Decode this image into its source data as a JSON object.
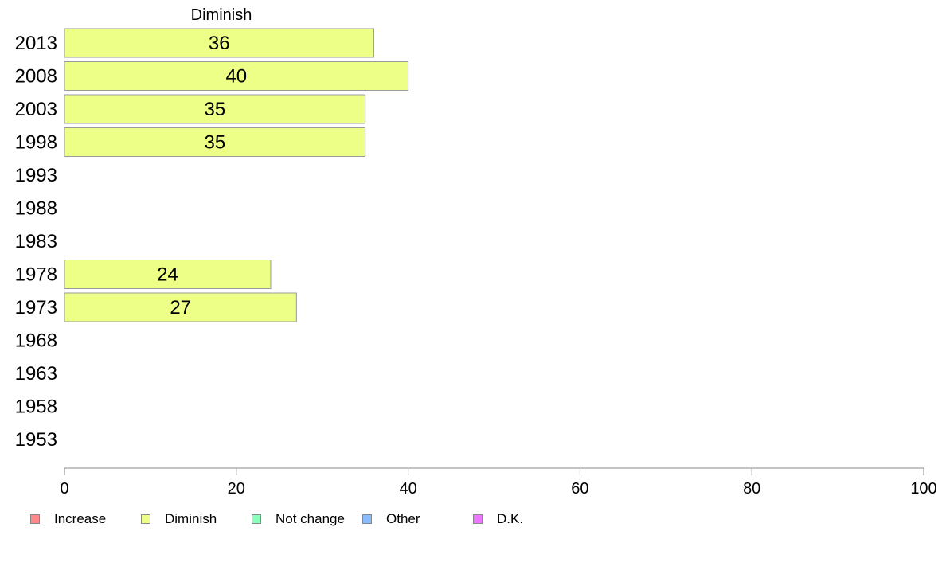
{
  "chart_data": {
    "type": "bar",
    "orientation": "horizontal",
    "title": "Diminish",
    "categories": [
      "2013",
      "2008",
      "2003",
      "1998",
      "1993",
      "1988",
      "1983",
      "1978",
      "1973",
      "1968",
      "1963",
      "1958",
      "1953"
    ],
    "series": [
      {
        "name": "Diminish",
        "values": [
          36,
          40,
          35,
          35,
          null,
          null,
          null,
          24,
          27,
          null,
          null,
          null,
          null
        ]
      }
    ],
    "xlim": [
      0,
      100
    ],
    "xticks": [
      "0",
      "20",
      "40",
      "60",
      "80",
      "100"
    ],
    "grid": false,
    "legend_placement": "bottom",
    "bar_color": "#eeff88",
    "bar_border_color": "#999999"
  },
  "legend": [
    {
      "label": "Increase",
      "color": "#ff8888"
    },
    {
      "label": "Diminish",
      "color": "#eeff88"
    },
    {
      "label": "Not change",
      "color": "#88ffbb"
    },
    {
      "label": "Other",
      "color": "#88bbff"
    },
    {
      "label": "D.K.",
      "color": "#ee77ff"
    }
  ]
}
